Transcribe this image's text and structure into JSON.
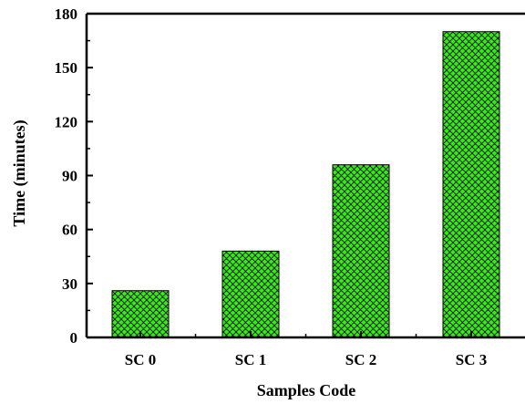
{
  "chart_data": {
    "type": "bar",
    "title": "",
    "xlabel": "Samples Code",
    "ylabel": "Time (minutes)",
    "categories": [
      "SC 0",
      "SC 1",
      "SC 2",
      "SC 3"
    ],
    "values": [
      26,
      48,
      96,
      170
    ],
    "ylim": [
      0,
      180
    ],
    "yticks": [
      0,
      30,
      60,
      90,
      120,
      150,
      180
    ],
    "grid": false,
    "legend": "none",
    "bar_color": "#33ee11",
    "bar_pattern": "crosshatch"
  }
}
